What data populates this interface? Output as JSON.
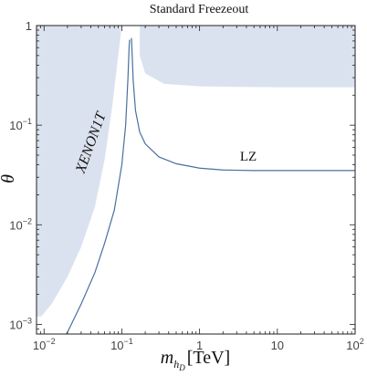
{
  "chart_data": {
    "type": "line",
    "title": "Standard Freezeout",
    "xlabel": {
      "symbol": "m",
      "sub1": "h",
      "sub2": "D",
      "unit": "[TeV]"
    },
    "ylabel": "θ",
    "xscale": "log",
    "yscale": "log",
    "xlim": [
      0.008,
      100
    ],
    "ylim": [
      0.0008,
      1
    ],
    "grid": false,
    "x_ticks": [
      {
        "base": "10",
        "exp": "−2",
        "value": 0.01
      },
      {
        "base": "10",
        "exp": "−1",
        "value": 0.1
      },
      {
        "base": "1",
        "exp": "",
        "value": 1
      },
      {
        "base": "10",
        "exp": "",
        "value": 10
      },
      {
        "base": "10",
        "exp": "2",
        "value": 100
      }
    ],
    "y_ticks": [
      {
        "base": "1",
        "exp": "",
        "value": 1
      },
      {
        "base": "10",
        "exp": "−1",
        "value": 0.1
      },
      {
        "base": "10",
        "exp": "−2",
        "value": 0.01
      },
      {
        "base": "10",
        "exp": "−3",
        "value": 0.001
      }
    ],
    "series": [
      {
        "label": "LZ",
        "color": "#4a6fa0",
        "left_branch": [
          [
            0.0195,
            0.0008
          ],
          [
            0.03,
            0.0016
          ],
          [
            0.045,
            0.0033
          ],
          [
            0.06,
            0.0065
          ],
          [
            0.08,
            0.014
          ],
          [
            0.1,
            0.04
          ],
          [
            0.112,
            0.1
          ],
          [
            0.12,
            0.3
          ],
          [
            0.124,
            0.6
          ],
          [
            0.126,
            0.72
          ]
        ],
        "right_branch": [
          [
            0.133,
            0.75
          ],
          [
            0.136,
            0.5
          ],
          [
            0.14,
            0.28
          ],
          [
            0.15,
            0.14
          ],
          [
            0.17,
            0.085
          ],
          [
            0.2,
            0.065
          ],
          [
            0.3,
            0.048
          ],
          [
            0.5,
            0.041
          ],
          [
            1,
            0.037
          ],
          [
            2,
            0.0355
          ],
          [
            5,
            0.035
          ],
          [
            100,
            0.035
          ]
        ]
      }
    ],
    "regions": [
      {
        "label": "XENON1T",
        "color": "#dbe2ef",
        "boundary": [
          [
            0.0092,
            0.0012
          ],
          [
            0.0125,
            0.0016
          ],
          [
            0.02,
            0.003
          ],
          [
            0.03,
            0.006
          ],
          [
            0.045,
            0.015
          ],
          [
            0.06,
            0.045
          ],
          [
            0.075,
            0.15
          ],
          [
            0.09,
            0.5
          ],
          [
            0.1,
            1
          ]
        ]
      },
      {
        "label": "",
        "color": "#dbe2ef",
        "boundary": [
          [
            0.17,
            1
          ],
          [
            0.17,
            0.5
          ],
          [
            0.2,
            0.33
          ],
          [
            0.35,
            0.26
          ],
          [
            1,
            0.245
          ],
          [
            10,
            0.24
          ],
          [
            100,
            0.24
          ]
        ]
      }
    ]
  }
}
